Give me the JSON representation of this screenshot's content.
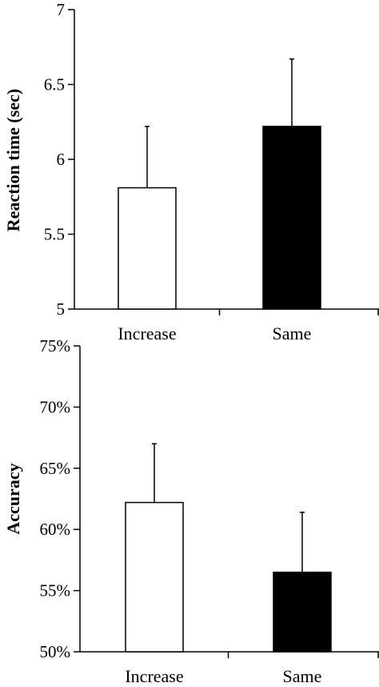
{
  "chart_data": [
    {
      "type": "bar",
      "categories": [
        "Increase",
        "Same"
      ],
      "values": [
        5.81,
        6.22
      ],
      "errors": [
        0.41,
        0.45
      ],
      "ylabel": "Reaction time (sec)",
      "ylim": [
        5,
        7
      ],
      "yticks": [
        5,
        5.5,
        6,
        6.5,
        7
      ],
      "ytick_labels": [
        "5",
        "5.5",
        "6",
        "6.5",
        "7"
      ],
      "bar_colors": [
        "#ffffff",
        "#000000"
      ],
      "grid": false
    },
    {
      "type": "bar",
      "categories": [
        "Increase",
        "Same"
      ],
      "values": [
        62.2,
        56.5
      ],
      "errors": [
        4.8,
        4.9
      ],
      "ylabel": "Accuracy",
      "ylim": [
        50,
        75
      ],
      "yticks": [
        50,
        55,
        60,
        65,
        70,
        75
      ],
      "ytick_labels": [
        "50%",
        "55%",
        "60%",
        "65%",
        "70%",
        "75%"
      ],
      "bar_colors": [
        "#ffffff",
        "#000000"
      ],
      "grid": false
    }
  ]
}
